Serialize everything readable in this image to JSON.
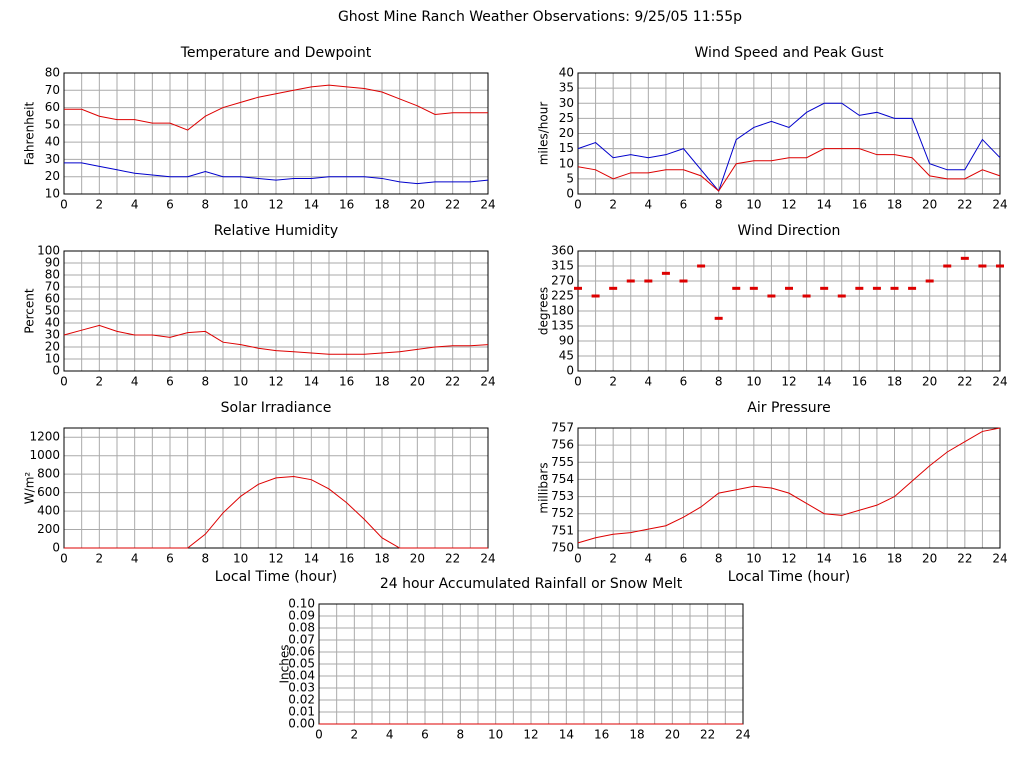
{
  "title": "Ghost Mine Ranch Weather Observations: 9/25/05 11:55p",
  "chart_data": [
    {
      "type": "line",
      "title": "Temperature and Dewpoint",
      "ylabel": "Fahrenheit",
      "x": [
        0,
        1,
        2,
        3,
        4,
        5,
        6,
        7,
        8,
        9,
        10,
        11,
        12,
        13,
        14,
        15,
        16,
        17,
        18,
        19,
        20,
        21,
        22,
        23,
        24
      ],
      "xlim": [
        0,
        24
      ],
      "xticks": [
        0,
        2,
        4,
        6,
        8,
        10,
        12,
        14,
        16,
        18,
        20,
        22,
        24
      ],
      "x_minor_ticks": [
        1,
        3,
        5,
        7,
        9,
        11,
        13,
        15,
        17,
        19,
        21,
        23
      ],
      "ylim": [
        10,
        80
      ],
      "yticks": [
        10,
        20,
        30,
        40,
        50,
        60,
        70,
        80
      ],
      "grid": true,
      "series": [
        {
          "color": "#dd0000",
          "values": [
            59,
            59,
            55,
            53,
            53,
            51,
            51,
            47,
            55,
            60,
            63,
            66,
            68,
            70,
            72,
            73,
            72,
            71,
            69,
            65,
            61,
            56,
            57,
            57,
            57
          ]
        },
        {
          "color": "#0000cc",
          "values": [
            28,
            28,
            26,
            24,
            22,
            21,
            20,
            20,
            23,
            20,
            20,
            19,
            18,
            19,
            19,
            20,
            20,
            20,
            19,
            17,
            16,
            17,
            17,
            17,
            18
          ]
        }
      ]
    },
    {
      "type": "line",
      "title": "Wind Speed and Peak Gust",
      "ylabel": "miles/hour",
      "x": [
        0,
        1,
        2,
        3,
        4,
        5,
        6,
        7,
        8,
        9,
        10,
        11,
        12,
        13,
        14,
        15,
        16,
        17,
        18,
        19,
        20,
        21,
        22,
        23,
        24
      ],
      "xlim": [
        0,
        24
      ],
      "xticks": [
        0,
        2,
        4,
        6,
        8,
        10,
        12,
        14,
        16,
        18,
        20,
        22,
        24
      ],
      "x_minor_ticks": [
        1,
        3,
        5,
        7,
        9,
        11,
        13,
        15,
        17,
        19,
        21,
        23
      ],
      "ylim": [
        0,
        40
      ],
      "yticks": [
        0,
        5,
        10,
        15,
        20,
        25,
        30,
        35,
        40
      ],
      "grid": true,
      "series": [
        {
          "color": "#0000cc",
          "values": [
            15,
            17,
            12,
            13,
            12,
            13,
            15,
            8,
            1,
            18,
            22,
            24,
            22,
            27,
            30,
            30,
            26,
            27,
            25,
            25,
            10,
            8,
            8,
            18,
            12
          ]
        },
        {
          "color": "#dd0000",
          "values": [
            9,
            8,
            5,
            7,
            7,
            8,
            8,
            6,
            1,
            10,
            11,
            11,
            12,
            12,
            15,
            15,
            15,
            13,
            13,
            12,
            6,
            5,
            5,
            8,
            6
          ]
        }
      ]
    },
    {
      "type": "line",
      "title": "Relative Humidity",
      "ylabel": "Percent",
      "x": [
        0,
        1,
        2,
        3,
        4,
        5,
        6,
        7,
        8,
        9,
        10,
        11,
        12,
        13,
        14,
        15,
        16,
        17,
        18,
        19,
        20,
        21,
        22,
        23,
        24
      ],
      "xlim": [
        0,
        24
      ],
      "xticks": [
        0,
        2,
        4,
        6,
        8,
        10,
        12,
        14,
        16,
        18,
        20,
        22,
        24
      ],
      "x_minor_ticks": [
        1,
        3,
        5,
        7,
        9,
        11,
        13,
        15,
        17,
        19,
        21,
        23
      ],
      "ylim": [
        0,
        100
      ],
      "yticks": [
        0,
        10,
        20,
        30,
        40,
        50,
        60,
        70,
        80,
        90,
        100
      ],
      "grid": true,
      "series": [
        {
          "color": "#dd0000",
          "values": [
            30,
            34,
            38,
            33,
            30,
            30,
            28,
            32,
            33,
            24,
            22,
            19,
            17,
            16,
            15,
            14,
            14,
            14,
            15,
            16,
            18,
            20,
            21,
            21,
            22
          ]
        }
      ]
    },
    {
      "type": "scatter",
      "title": "Wind Direction",
      "ylabel": "degrees",
      "x": [
        0,
        1,
        2,
        3,
        4,
        5,
        6,
        7,
        8,
        9,
        10,
        11,
        12,
        13,
        14,
        15,
        16,
        17,
        18,
        19,
        20,
        21,
        22,
        23,
        24
      ],
      "xlim": [
        0,
        24
      ],
      "xticks": [
        0,
        2,
        4,
        6,
        8,
        10,
        12,
        14,
        16,
        18,
        20,
        22,
        24
      ],
      "x_minor_ticks": [
        1,
        3,
        5,
        7,
        9,
        11,
        13,
        15,
        17,
        19,
        21,
        23
      ],
      "ylim": [
        0,
        360
      ],
      "yticks": [
        0,
        45,
        90,
        135,
        180,
        225,
        270,
        315,
        360
      ],
      "grid": true,
      "series": [
        {
          "color": "#dd0000",
          "values": [
            248,
            225,
            248,
            270,
            270,
            293,
            270,
            315,
            158,
            248,
            248,
            225,
            248,
            225,
            248,
            225,
            248,
            248,
            248,
            248,
            270,
            315,
            338,
            315,
            315
          ]
        }
      ]
    },
    {
      "type": "line",
      "title": "Solar Irradiance",
      "ylabel": "W/m²",
      "xlabel": "Local Time (hour)",
      "x": [
        0,
        1,
        2,
        3,
        4,
        5,
        6,
        7,
        8,
        9,
        10,
        11,
        12,
        13,
        14,
        15,
        16,
        17,
        18,
        19,
        20,
        21,
        22,
        23,
        24
      ],
      "xlim": [
        0,
        24
      ],
      "xticks": [
        0,
        2,
        4,
        6,
        8,
        10,
        12,
        14,
        16,
        18,
        20,
        22,
        24
      ],
      "x_minor_ticks": [
        1,
        3,
        5,
        7,
        9,
        11,
        13,
        15,
        17,
        19,
        21,
        23
      ],
      "ylim": [
        0,
        1300
      ],
      "yticks": [
        0,
        200,
        400,
        600,
        800,
        1000,
        1200
      ],
      "grid": true,
      "series": [
        {
          "color": "#dd0000",
          "values": [
            0,
            0,
            0,
            0,
            0,
            0,
            0,
            0,
            150,
            380,
            560,
            690,
            760,
            775,
            740,
            640,
            490,
            310,
            110,
            0,
            0,
            0,
            0,
            0,
            0
          ]
        }
      ]
    },
    {
      "type": "line",
      "title": "Air Pressure",
      "ylabel": "millibars",
      "xlabel": "Local Time (hour)",
      "x": [
        0,
        1,
        2,
        3,
        4,
        5,
        6,
        7,
        8,
        9,
        10,
        11,
        12,
        13,
        14,
        15,
        16,
        17,
        18,
        19,
        20,
        21,
        22,
        23,
        24
      ],
      "xlim": [
        0,
        24
      ],
      "xticks": [
        0,
        2,
        4,
        6,
        8,
        10,
        12,
        14,
        16,
        18,
        20,
        22,
        24
      ],
      "x_minor_ticks": [
        1,
        3,
        5,
        7,
        9,
        11,
        13,
        15,
        17,
        19,
        21,
        23
      ],
      "ylim": [
        750,
        757
      ],
      "yticks": [
        750,
        751,
        752,
        753,
        754,
        755,
        756,
        757
      ],
      "grid": true,
      "series": [
        {
          "color": "#dd0000",
          "values": [
            750.3,
            750.6,
            750.8,
            750.9,
            751.1,
            751.3,
            751.8,
            752.4,
            753.2,
            753.4,
            753.6,
            753.5,
            753.2,
            752.6,
            752.0,
            751.9,
            752.2,
            752.5,
            753.0,
            753.9,
            754.8,
            755.6,
            756.2,
            756.8,
            757
          ]
        }
      ]
    },
    {
      "type": "line",
      "title": "24 hour Accumulated Rainfall or Snow Melt",
      "ylabel": "Inches",
      "x": [
        0,
        1,
        2,
        3,
        4,
        5,
        6,
        7,
        8,
        9,
        10,
        11,
        12,
        13,
        14,
        15,
        16,
        17,
        18,
        19,
        20,
        21,
        22,
        23,
        24
      ],
      "xlim": [
        0,
        24
      ],
      "xticks": [
        0,
        2,
        4,
        6,
        8,
        10,
        12,
        14,
        16,
        18,
        20,
        22,
        24
      ],
      "x_minor_ticks": [
        1,
        3,
        5,
        7,
        9,
        11,
        13,
        15,
        17,
        19,
        21,
        23
      ],
      "ylim": [
        0,
        0.1
      ],
      "yticks": [
        {
          "value": 0,
          "label": "0.00"
        },
        0.01,
        0.02,
        0.03,
        0.04,
        0.05,
        0.06,
        0.07,
        0.08,
        0.09,
        {
          "value": 0.1,
          "label": "0.10"
        }
      ],
      "grid": true,
      "series": [
        {
          "color": "#dd0000",
          "values": [
            0,
            0,
            0,
            0,
            0,
            0,
            0,
            0,
            0,
            0,
            0,
            0,
            0,
            0,
            0,
            0,
            0,
            0,
            0,
            0,
            0,
            0,
            0,
            0,
            0
          ]
        }
      ]
    }
  ]
}
